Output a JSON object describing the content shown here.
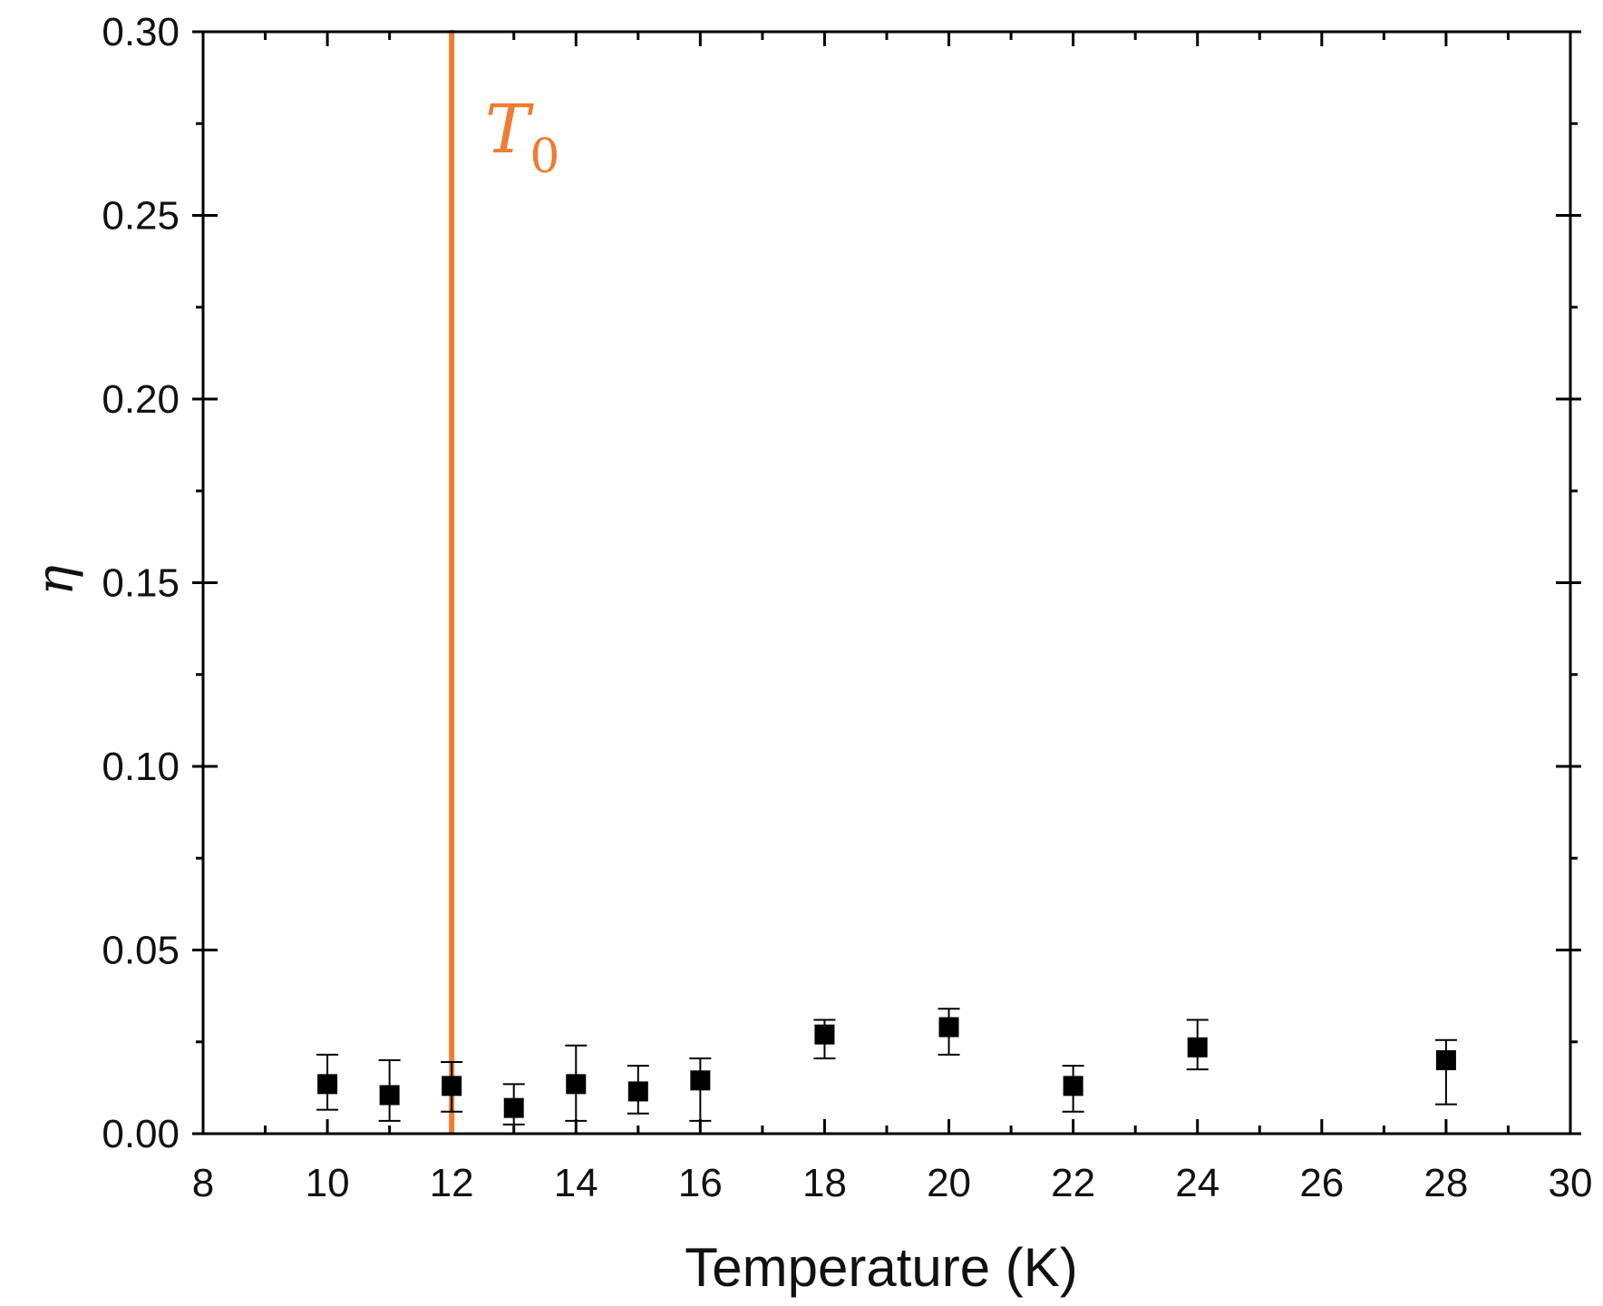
{
  "chart_data": {
    "type": "scatter",
    "xlabel": "Temperature (K)",
    "ylabel": "η",
    "xlim": [
      8,
      30
    ],
    "ylim": [
      0,
      0.3
    ],
    "x_ticks": [
      "8",
      "10",
      "12",
      "14",
      "16",
      "18",
      "20",
      "22",
      "24",
      "26",
      "28",
      "30"
    ],
    "y_ticks": [
      "0.00",
      "0.05",
      "0.10",
      "0.15",
      "0.20",
      "0.25",
      "0.30"
    ],
    "grid": false,
    "series": [
      {
        "marker": "square",
        "color": "#000000",
        "points": [
          {
            "x": 10,
            "y": 0.0135,
            "err_low": 0.0065,
            "err_high": 0.0215
          },
          {
            "x": 11,
            "y": 0.0105,
            "err_low": 0.0035,
            "err_high": 0.02
          },
          {
            "x": 12,
            "y": 0.013,
            "err_low": 0.006,
            "err_high": 0.0195
          },
          {
            "x": 13,
            "y": 0.007,
            "err_low": 0.0025,
            "err_high": 0.0135
          },
          {
            "x": 14,
            "y": 0.0135,
            "err_low": 0.0035,
            "err_high": 0.024
          },
          {
            "x": 15,
            "y": 0.0115,
            "err_low": 0.0055,
            "err_high": 0.0185
          },
          {
            "x": 16,
            "y": 0.0145,
            "err_low": 0.0035,
            "err_high": 0.0205
          },
          {
            "x": 18,
            "y": 0.027,
            "err_low": 0.0205,
            "err_high": 0.031
          },
          {
            "x": 20,
            "y": 0.029,
            "err_low": 0.0215,
            "err_high": 0.034
          },
          {
            "x": 22,
            "y": 0.013,
            "err_low": 0.006,
            "err_high": 0.0185
          },
          {
            "x": 24,
            "y": 0.0235,
            "err_low": 0.0175,
            "err_high": 0.031
          },
          {
            "x": 28,
            "y": 0.02,
            "err_low": 0.008,
            "err_high": 0.0255
          }
        ]
      }
    ],
    "annotations": [
      {
        "type": "vline",
        "x": 12,
        "color": "#ee7d31",
        "label": "T",
        "label_subscript": "0"
      }
    ]
  }
}
